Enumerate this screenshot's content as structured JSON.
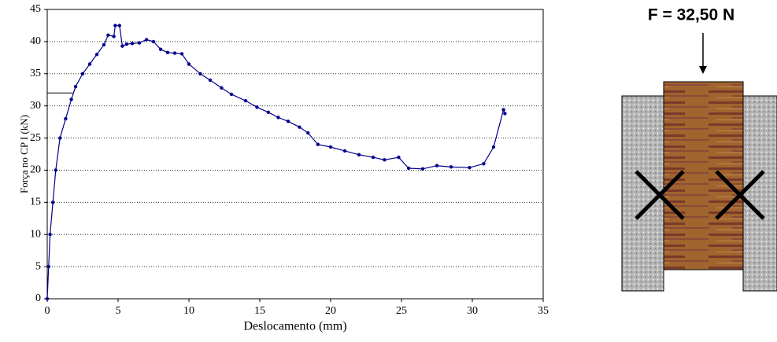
{
  "chart_data": {
    "type": "line",
    "xlabel": "Deslocamento (mm)",
    "ylabel": "Força no CP I (kN)",
    "x": [
      0,
      0.1,
      0.2,
      0.4,
      0.6,
      0.9,
      1.3,
      1.7,
      2,
      2.5,
      3,
      3.5,
      4,
      4.3,
      4.7,
      4.8,
      5.1,
      5.3,
      5.6,
      6,
      6.5,
      7,
      7.5,
      8,
      8.5,
      9,
      9.5,
      10,
      10.8,
      11.5,
      12.3,
      13,
      14,
      14.8,
      15.6,
      16.3,
      17,
      17.8,
      18.4,
      19.1,
      20,
      21,
      22,
      23,
      23.8,
      24.8,
      25.5,
      26.5,
      27.5,
      28.5,
      29.8,
      30.8,
      31.5,
      32.2,
      32.3
    ],
    "values": [
      0,
      5,
      10,
      15,
      20,
      25,
      28,
      31,
      33,
      35,
      36.5,
      38,
      39.5,
      41,
      40.8,
      42.5,
      42.5,
      39.3,
      39.6,
      39.7,
      39.8,
      40.3,
      40,
      38.8,
      38.3,
      38.2,
      38.1,
      36.5,
      35,
      34,
      32.8,
      31.8,
      30.8,
      29.8,
      29,
      28.2,
      27.6,
      26.7,
      25.8,
      24,
      23.6,
      23,
      22.4,
      22,
      21.6,
      22,
      20.3,
      20.2,
      20.7,
      20.5,
      20.4,
      21,
      23.6,
      29.4,
      28.8
    ],
    "color": "#00008b",
    "xlim": [
      0,
      35
    ],
    "xticks": [
      0,
      5,
      10,
      15,
      20,
      25,
      30,
      35
    ],
    "ylim": [
      0,
      45
    ],
    "yticks": [
      0,
      5,
      10,
      15,
      20,
      25,
      30,
      35,
      40,
      45
    ],
    "grid": true
  },
  "diagram": {
    "label": "F = 32,50 N"
  }
}
